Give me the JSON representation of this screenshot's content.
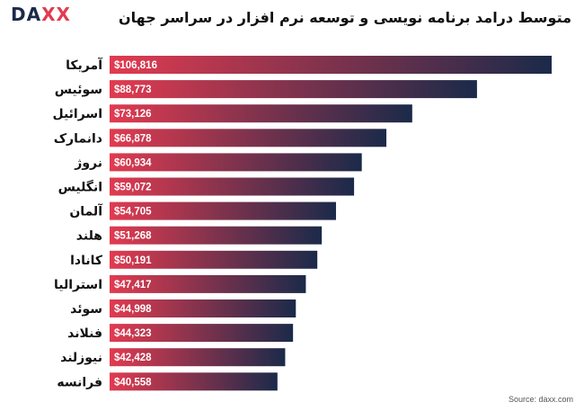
{
  "brand": {
    "logo_left": "DA",
    "logo_accent": "XX"
  },
  "source": "Source: daxx.com",
  "chart_data": {
    "type": "bar",
    "orientation": "horizontal",
    "title": "متوسط درامد برنامه نویسی و توسعه نرم افزار در سراسر جهان",
    "categories": [
      "آمریکا",
      "سوئیس",
      "اسرائیل",
      "دانمارک",
      "نروژ",
      "انگلیس",
      "آلمان",
      "هلند",
      "کانادا",
      "استرالیا",
      "سوئد",
      "فنلاند",
      "نیوزلند",
      "فرانسه"
    ],
    "values": [
      106816,
      88773,
      73126,
      66878,
      60934,
      59072,
      54705,
      51268,
      50191,
      47417,
      44998,
      44323,
      42428,
      40558
    ],
    "value_labels": [
      "$106,816",
      "$88,773",
      "$73,126",
      "$66,878",
      "$60,934",
      "$59,072",
      "$54,705",
      "$51,268",
      "$50,191",
      "$47,417",
      "$44,998",
      "$44,323",
      "$42,428",
      "$40,558"
    ],
    "gradient_colors": [
      "#e23b50",
      "#1b2a4a"
    ],
    "grid": false,
    "legend": "none"
  }
}
